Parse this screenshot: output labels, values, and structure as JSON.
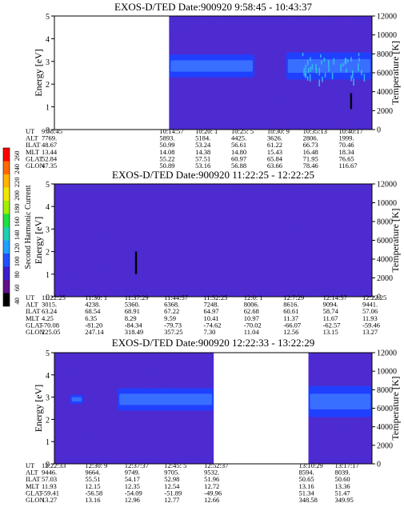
{
  "colors": {
    "background_plasma": "#4d2bd0",
    "band_blue": "#2040ff",
    "band_light": "#3f7bff",
    "band_cyan": "#37c7ee",
    "no_data": "#ffffff",
    "streak": "#000000"
  },
  "colorbar": {
    "label": "Second Harmonic Current",
    "ticks": [
      "260",
      "240",
      "220",
      "200",
      "180",
      "160",
      "140",
      "120",
      "100",
      "80",
      "60",
      "40"
    ],
    "colors": [
      "#ff0000",
      "#ff6a00",
      "#ffb400",
      "#f0e600",
      "#a0f000",
      "#20e040",
      "#20d0b0",
      "#20a0ff",
      "#2050ff",
      "#3a1fc8",
      "#60108a",
      "#000000"
    ]
  },
  "chart_data": [
    {
      "type": "heatmap",
      "title": "EXOS-D/TED   Date:900920  9:58:45 - 10:43:37",
      "ylabel": "Energy [eV]",
      "y2label": "Temperature [K]",
      "ylim": [
        0,
        5
      ],
      "y2lim": [
        0,
        12000
      ],
      "yticks": [
        "0",
        "1",
        "2",
        "3",
        "4",
        "5"
      ],
      "y2ticks": [
        "0",
        "2000",
        "4000",
        "6000",
        "8000",
        "10000",
        "12000"
      ],
      "no_data_intervals": [
        [
          "9:58:45",
          "10:14:57"
        ]
      ],
      "bands": [
        {
          "start": "10:14:57",
          "end": "10:27:00",
          "energy_low": 2.3,
          "energy_high": 3.3,
          "level": "high"
        },
        {
          "start": "10:31:30",
          "end": "10:43:37",
          "energy_low": 2.2,
          "energy_high": 3.4,
          "level": "high"
        }
      ],
      "streaks": [
        {
          "time": "10:40:40",
          "energy_low": 0.9,
          "energy_high": 1.6
        }
      ],
      "info_labels": [
        "UT",
        "ALT",
        "ILAT",
        "MLT",
        "GLAT",
        "GLON"
      ],
      "info_columns": [
        {
          "UT": "9:58:45",
          "ALT": "7769.",
          "ILAT": "48.67",
          "MLT": "13.44",
          "GLAT": "52.84",
          "GLON": "47.35"
        },
        {
          "UT": "10:14:57",
          "ALT": "5893.",
          "ILAT": "50.99",
          "MLT": "14.08",
          "GLAT": "55.22",
          "GLON": "50.89"
        },
        {
          "UT": "10:20: 1",
          "ALT": "5184.",
          "ILAT": "53.24",
          "MLT": "14.38",
          "GLAT": "57.51",
          "GLON": "53.16"
        },
        {
          "UT": "10:25: 5",
          "ALT": "4425.",
          "ILAT": "56.61",
          "MLT": "14.80",
          "GLAT": "60.97",
          "GLON": "56.88"
        },
        {
          "UT": "10:30: 9",
          "ALT": "3626.",
          "ILAT": "61.22",
          "MLT": "15.43",
          "GLAT": "65.84",
          "GLON": "63.66"
        },
        {
          "UT": "10:35:13",
          "ALT": "2806.",
          "ILAT": "66.73",
          "MLT": "16.48",
          "GLAT": "71.95",
          "GLON": "78.46"
        },
        {
          "UT": "10:40:17",
          "ALT": "1999.",
          "ILAT": "70.46",
          "MLT": "18.34",
          "GLAT": "76.65",
          "GLON": "116.67"
        }
      ]
    },
    {
      "type": "heatmap",
      "title": "EXOS-D/TED   Date:900920  11:22:25 - 12:22:25",
      "ylabel": "Energy [eV]",
      "y2label": "Temperature [K]",
      "ylim": [
        0,
        5
      ],
      "y2lim": [
        0,
        12000
      ],
      "yticks": [
        "0",
        "1",
        "2",
        "3",
        "4",
        "5"
      ],
      "y2ticks": [
        "0",
        "2000",
        "4000",
        "6000",
        "8000",
        "10000",
        "12000"
      ],
      "no_data_intervals": [],
      "bands": [],
      "streaks": [
        {
          "time": "11:37:50",
          "energy_low": 1.0,
          "energy_high": 2.0
        }
      ],
      "info_labels": [
        "UT",
        "ALT",
        "ILAT",
        "MLT",
        "GLAT",
        "GLON"
      ],
      "info_columns": [
        {
          "UT": "11:22:25",
          "ALT": "3015.",
          "ILAT": "63.24",
          "MLT": "4.25",
          "GLAT": "-70.08",
          "GLON": "225.05"
        },
        {
          "UT": "11:30: 1",
          "ALT": "4238.",
          "ILAT": "68.54",
          "MLT": "6.35",
          "GLAT": "-81.20",
          "GLON": "247.14"
        },
        {
          "UT": "11:37:29",
          "ALT": "5360.",
          "ILAT": "68.91",
          "MLT": "8.29",
          "GLAT": "-84.34",
          "GLON": "318.49"
        },
        {
          "UT": "11:44:57",
          "ALT": "6368.",
          "ILAT": "67.22",
          "MLT": "9.59",
          "GLAT": "-79.73",
          "GLON": "357.25"
        },
        {
          "UT": "11:52:25",
          "ALT": "7248.",
          "ILAT": "64.97",
          "MLT": "10.41",
          "GLAT": "-74.62",
          "GLON": "7.30"
        },
        {
          "UT": "12:0: 1",
          "ALT": "8006.",
          "ILAT": "62.68",
          "MLT": "10.97",
          "GLAT": "-70.02",
          "GLON": "11.04"
        },
        {
          "UT": "12:7:29",
          "ALT": "8616.",
          "ILAT": "60.61",
          "MLT": "11.37",
          "GLAT": "-66.07",
          "GLON": "12.56"
        },
        {
          "UT": "12:14:57",
          "ALT": "9094.",
          "ILAT": "58.74",
          "MLT": "11.67",
          "GLAT": "-62.57",
          "GLON": "13.15"
        },
        {
          "UT": "12:22:25",
          "ALT": "9441.",
          "ILAT": "57.06",
          "MLT": "11.93",
          "GLAT": "-59.46",
          "GLON": "13.27"
        }
      ]
    },
    {
      "type": "heatmap",
      "title": "EXOS-D/TED   Date:900920  12:22:33 - 13:22:29",
      "ylabel": "Energy [eV]",
      "y2label": "Temperature [K]",
      "ylim": [
        0,
        5
      ],
      "y2lim": [
        0,
        12000
      ],
      "yticks": [
        "0",
        "1",
        "2",
        "3",
        "4",
        "5"
      ],
      "y2ticks": [
        "0",
        "2000",
        "4000",
        "6000",
        "8000",
        "10000",
        "12000"
      ],
      "no_data_intervals": [
        [
          "12:52:37",
          "13:10:29"
        ]
      ],
      "bands": [
        {
          "start": "12:25:30",
          "end": "12:28:00",
          "energy_low": 2.7,
          "energy_high": 3.1,
          "level": "medium"
        },
        {
          "start": "12:34:30",
          "end": "12:52:37",
          "energy_low": 2.4,
          "energy_high": 3.4,
          "level": "medium"
        },
        {
          "start": "13:10:29",
          "end": "13:22:29",
          "energy_low": 2.1,
          "energy_high": 3.5,
          "level": "high"
        }
      ],
      "streaks": [],
      "info_labels": [
        "UT",
        "ALT",
        "ILAT",
        "MLT",
        "GLAT",
        "GLON"
      ],
      "info_columns": [
        {
          "UT": "12:22:33",
          "ALT": "9446.",
          "ILAT": "57.03",
          "MLT": "11.93",
          "GLAT": "-59.41",
          "GLON": "13.27"
        },
        {
          "UT": "12:30: 9",
          "ALT": "9664.",
          "ILAT": "55.51",
          "MLT": "12.15",
          "GLAT": "-56.58",
          "GLON": "13.16"
        },
        {
          "UT": "12:37:37",
          "ALT": "9749.",
          "ILAT": "54.17",
          "MLT": "12.35",
          "GLAT": "-54.09",
          "GLON": "12.96"
        },
        {
          "UT": "12:45: 5",
          "ALT": "9705.",
          "ILAT": "52.98",
          "MLT": "12.54",
          "GLAT": "-51.89",
          "GLON": "12.77"
        },
        {
          "UT": "12:52:37",
          "ALT": "9532.",
          "ILAT": "51.96",
          "MLT": "12.72",
          "GLAT": "-49.96",
          "GLON": "12.66"
        },
        {
          "UT": "13:10:29",
          "ALT": "8594.",
          "ILAT": "50.65",
          "MLT": "13.16",
          "GLAT": "51.34",
          "GLON": "348.58"
        },
        {
          "UT": "13:17:17",
          "ALT": "8039.",
          "ILAT": "50.60",
          "MLT": "13.36",
          "GLAT": "51.47",
          "GLON": "349.95"
        }
      ]
    }
  ]
}
